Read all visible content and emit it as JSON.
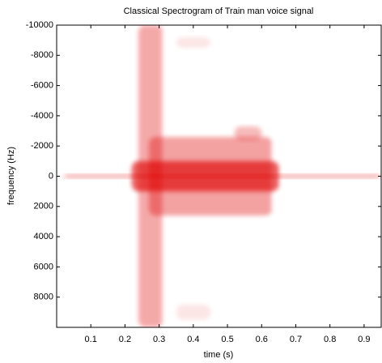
{
  "chart_data": {
    "type": "spectrogram",
    "title": "Classical Spectrogram of Train man voice signal",
    "x_label": "time (s)",
    "y_label": "frequency (Hz)",
    "xlim": [
      0,
      0.95
    ],
    "ylim": [
      -10000,
      10000
    ],
    "y_reversed": true,
    "xticks": [
      0.1,
      0.2,
      0.3,
      0.4,
      0.5,
      0.6,
      0.7,
      0.8,
      0.9
    ],
    "yticks": [
      -10000,
      -8000,
      -6000,
      -4000,
      -2000,
      0,
      2000,
      4000,
      6000,
      8000
    ],
    "color": "#e00000",
    "blobs": [
      {
        "x": [
          0.02,
          0.95
        ],
        "y": [
          -150,
          150
        ],
        "intensity": 0.45
      },
      {
        "x": [
          0.24,
          0.31
        ],
        "y": [
          -10000,
          10000
        ],
        "intensity": 0.5
      },
      {
        "x": [
          0.27,
          0.63
        ],
        "y": [
          -2600,
          2600
        ],
        "intensity": 0.55
      },
      {
        "x": [
          0.52,
          0.6
        ],
        "y": [
          -3300,
          -2400
        ],
        "intensity": 0.4
      },
      {
        "x": [
          0.22,
          0.65
        ],
        "y": [
          -1000,
          1000
        ],
        "intensity": 0.95
      },
      {
        "x": [
          0.35,
          0.45
        ],
        "y": [
          -9200,
          -8500
        ],
        "intensity": 0.15
      },
      {
        "x": [
          0.35,
          0.45
        ],
        "y": [
          8500,
          9500
        ],
        "intensity": 0.15
      }
    ]
  }
}
